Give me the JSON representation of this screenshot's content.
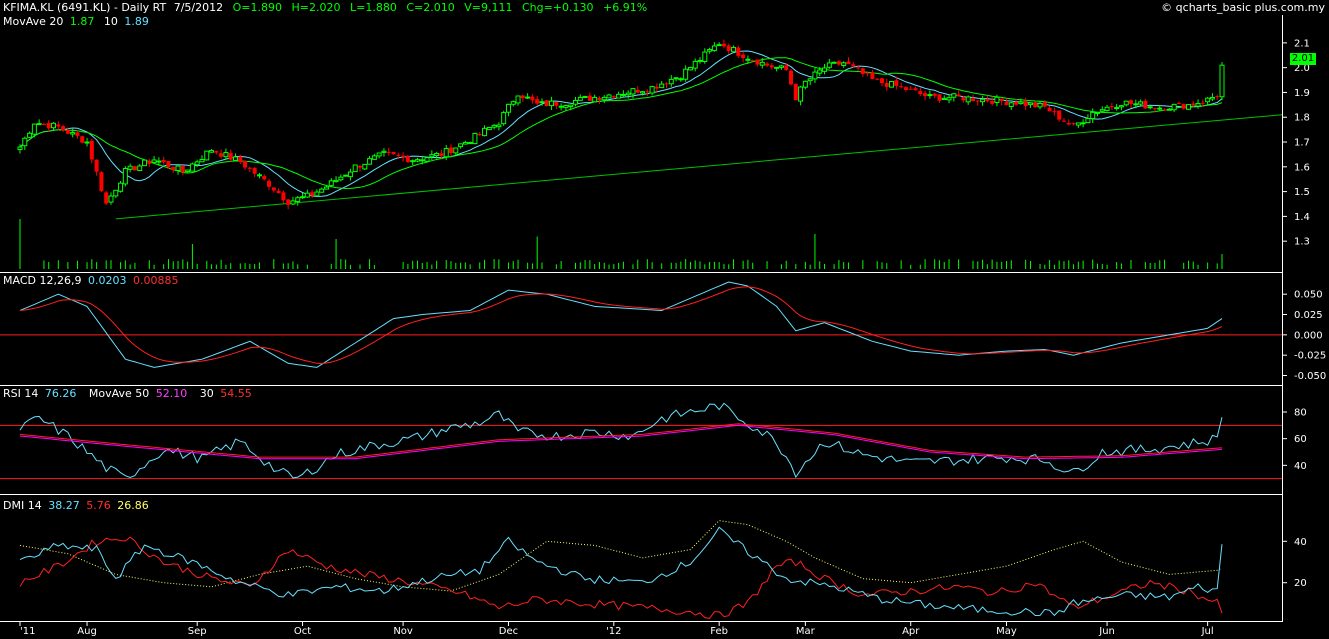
{
  "header": {
    "symbol": "KFIMA.KL (6491.KL) - Daily RT",
    "date": "7/5/2012",
    "open": "O=1.890",
    "high": "H=2.020",
    "low": "L=1.880",
    "close": "C=2.010",
    "volume": "V=9,111",
    "change": "Chg=+0.130",
    "change_pct": "+6.91%",
    "copyright": "© qcharts_basic plus.com.my",
    "last_price": "2.01"
  },
  "ma_legend": {
    "label": "MovAve 20",
    "v20": "1.87",
    "label10": "10",
    "v10": "1.89"
  },
  "macd_legend": {
    "label": "MACD 12,26,9",
    "macd": "0.0203",
    "signal": "0.00885"
  },
  "rsi_legend": {
    "label": "RSI 14",
    "rsi": "76.26",
    "ma_label": "MovAve 50",
    "ma": "52.10",
    "lvl_label": "30",
    "lvl": "54.55"
  },
  "dmi_legend": {
    "label": "DMI 14",
    "pdi": "38.27",
    "mdi": "5.76",
    "adx": "26.86"
  },
  "colors": {
    "up": "#00ff00",
    "down": "#ff0000",
    "cyan": "#66e0ff",
    "red": "#ff2020",
    "magenta": "#ff00ff",
    "yellow": "#ffff66",
    "trend": "#00c000"
  },
  "chart_data": {
    "type": "candlestick",
    "x_labels": [
      "'11",
      "Aug",
      "Sep",
      "Oct",
      "Nov",
      "Dec",
      "'12",
      "Feb",
      "Mar",
      "Apr",
      "May",
      "Jun",
      "Jul"
    ],
    "x_label_index": [
      0,
      14,
      37,
      59,
      80,
      102,
      124,
      146,
      164,
      186,
      206,
      227,
      248
    ],
    "price_axis": {
      "ticks": [
        "2.1",
        "2.0",
        "1.9",
        "1.8",
        "1.7",
        "1.6",
        "1.5",
        "1.4",
        "1.3"
      ],
      "range": [
        1.22,
        2.16
      ]
    },
    "price_keypoints": [
      [
        0,
        1.68
      ],
      [
        3,
        1.78
      ],
      [
        8,
        1.76
      ],
      [
        14,
        1.7
      ],
      [
        18,
        1.45
      ],
      [
        22,
        1.58
      ],
      [
        28,
        1.63
      ],
      [
        34,
        1.58
      ],
      [
        40,
        1.67
      ],
      [
        46,
        1.62
      ],
      [
        52,
        1.53
      ],
      [
        56,
        1.46
      ],
      [
        60,
        1.48
      ],
      [
        64,
        1.52
      ],
      [
        70,
        1.6
      ],
      [
        76,
        1.65
      ],
      [
        82,
        1.63
      ],
      [
        88,
        1.65
      ],
      [
        95,
        1.72
      ],
      [
        100,
        1.78
      ],
      [
        104,
        1.9
      ],
      [
        108,
        1.85
      ],
      [
        114,
        1.86
      ],
      [
        120,
        1.88
      ],
      [
        126,
        1.9
      ],
      [
        132,
        1.92
      ],
      [
        138,
        1.97
      ],
      [
        143,
        2.05
      ],
      [
        146,
        2.1
      ],
      [
        150,
        2.06
      ],
      [
        156,
        2.01
      ],
      [
        160,
        1.99
      ],
      [
        162,
        1.88
      ],
      [
        164,
        1.94
      ],
      [
        168,
        2.0
      ],
      [
        172,
        2.02
      ],
      [
        178,
        1.95
      ],
      [
        184,
        1.92
      ],
      [
        190,
        1.88
      ],
      [
        196,
        1.88
      ],
      [
        202,
        1.87
      ],
      [
        208,
        1.86
      ],
      [
        214,
        1.84
      ],
      [
        220,
        1.76
      ],
      [
        224,
        1.82
      ],
      [
        230,
        1.86
      ],
      [
        238,
        1.84
      ],
      [
        244,
        1.85
      ],
      [
        248,
        1.87
      ],
      [
        250,
        1.89
      ],
      [
        251,
        2.01
      ]
    ],
    "trendline": {
      "from": [
        20,
        1.39
      ],
      "to": [
        268,
        1.81
      ]
    },
    "macd_axis": {
      "ticks": [
        "0.050",
        "0.025",
        "0.000",
        "-0.025",
        "-0.050"
      ],
      "range": [
        -0.058,
        0.065
      ]
    },
    "macd_keypoints": [
      [
        0,
        0.03
      ],
      [
        8,
        0.05
      ],
      [
        14,
        0.035
      ],
      [
        22,
        -0.03
      ],
      [
        28,
        -0.04
      ],
      [
        38,
        -0.03
      ],
      [
        48,
        -0.008
      ],
      [
        56,
        -0.035
      ],
      [
        62,
        -0.04
      ],
      [
        70,
        -0.01
      ],
      [
        78,
        0.02
      ],
      [
        84,
        0.025
      ],
      [
        94,
        0.03
      ],
      [
        102,
        0.055
      ],
      [
        110,
        0.05
      ],
      [
        120,
        0.035
      ],
      [
        134,
        0.03
      ],
      [
        142,
        0.05
      ],
      [
        148,
        0.065
      ],
      [
        152,
        0.06
      ],
      [
        158,
        0.035
      ],
      [
        162,
        0.005
      ],
      [
        168,
        0.015
      ],
      [
        178,
        -0.008
      ],
      [
        186,
        -0.02
      ],
      [
        196,
        -0.025
      ],
      [
        206,
        -0.02
      ],
      [
        214,
        -0.018
      ],
      [
        220,
        -0.025
      ],
      [
        230,
        -0.01
      ],
      [
        240,
        0.0
      ],
      [
        248,
        0.008
      ],
      [
        251,
        0.02
      ]
    ],
    "rsi_axis": {
      "ticks": [
        "80",
        "60",
        "40"
      ],
      "range": [
        20,
        92
      ],
      "levels": [
        70,
        30
      ]
    },
    "rsi_keypoints": [
      [
        0,
        68
      ],
      [
        4,
        75
      ],
      [
        10,
        62
      ],
      [
        18,
        38
      ],
      [
        22,
        30
      ],
      [
        30,
        52
      ],
      [
        38,
        45
      ],
      [
        46,
        58
      ],
      [
        54,
        35
      ],
      [
        58,
        30
      ],
      [
        66,
        48
      ],
      [
        74,
        55
      ],
      [
        82,
        60
      ],
      [
        90,
        68
      ],
      [
        96,
        72
      ],
      [
        100,
        78
      ],
      [
        104,
        65
      ],
      [
        112,
        62
      ],
      [
        120,
        65
      ],
      [
        128,
        62
      ],
      [
        134,
        75
      ],
      [
        140,
        80
      ],
      [
        146,
        85
      ],
      [
        152,
        72
      ],
      [
        158,
        58
      ],
      [
        162,
        35
      ],
      [
        168,
        58
      ],
      [
        176,
        48
      ],
      [
        186,
        42
      ],
      [
        196,
        44
      ],
      [
        206,
        46
      ],
      [
        214,
        44
      ],
      [
        220,
        34
      ],
      [
        226,
        50
      ],
      [
        236,
        52
      ],
      [
        244,
        56
      ],
      [
        250,
        60
      ],
      [
        251,
        76
      ]
    ],
    "rsi_ma_keypoints": [
      [
        0,
        62
      ],
      [
        20,
        55
      ],
      [
        50,
        45
      ],
      [
        70,
        45
      ],
      [
        100,
        58
      ],
      [
        130,
        62
      ],
      [
        150,
        70
      ],
      [
        170,
        63
      ],
      [
        190,
        50
      ],
      [
        210,
        45
      ],
      [
        230,
        46
      ],
      [
        251,
        52
      ]
    ],
    "dmi_axis": {
      "ticks": [
        "40",
        "20"
      ],
      "range": [
        2,
        58
      ]
    },
    "pdi_keypoints": [
      [
        0,
        30
      ],
      [
        8,
        38
      ],
      [
        16,
        36
      ],
      [
        20,
        22
      ],
      [
        26,
        38
      ],
      [
        36,
        30
      ],
      [
        46,
        20
      ],
      [
        56,
        14
      ],
      [
        66,
        18
      ],
      [
        76,
        16
      ],
      [
        86,
        22
      ],
      [
        96,
        26
      ],
      [
        102,
        40
      ],
      [
        108,
        30
      ],
      [
        118,
        22
      ],
      [
        130,
        20
      ],
      [
        140,
        30
      ],
      [
        146,
        45
      ],
      [
        152,
        35
      ],
      [
        160,
        22
      ],
      [
        170,
        18
      ],
      [
        180,
        12
      ],
      [
        190,
        9
      ],
      [
        200,
        7
      ],
      [
        210,
        6
      ],
      [
        216,
        5
      ],
      [
        220,
        10
      ],
      [
        230,
        14
      ],
      [
        240,
        13
      ],
      [
        246,
        18
      ],
      [
        250,
        16
      ],
      [
        251,
        38
      ]
    ],
    "mdi_keypoints": [
      [
        0,
        20
      ],
      [
        8,
        28
      ],
      [
        16,
        40
      ],
      [
        22,
        42
      ],
      [
        30,
        30
      ],
      [
        40,
        22
      ],
      [
        48,
        18
      ],
      [
        56,
        36
      ],
      [
        64,
        28
      ],
      [
        72,
        24
      ],
      [
        82,
        20
      ],
      [
        92,
        15
      ],
      [
        100,
        8
      ],
      [
        108,
        12
      ],
      [
        118,
        10
      ],
      [
        130,
        8
      ],
      [
        140,
        6
      ],
      [
        146,
        4
      ],
      [
        152,
        10
      ],
      [
        158,
        28
      ],
      [
        162,
        30
      ],
      [
        168,
        22
      ],
      [
        176,
        14
      ],
      [
        186,
        16
      ],
      [
        196,
        18
      ],
      [
        204,
        15
      ],
      [
        212,
        20
      ],
      [
        220,
        8
      ],
      [
        228,
        14
      ],
      [
        236,
        20
      ],
      [
        244,
        16
      ],
      [
        250,
        10
      ],
      [
        251,
        6
      ]
    ],
    "adx_keypoints": [
      [
        0,
        38
      ],
      [
        10,
        34
      ],
      [
        20,
        24
      ],
      [
        30,
        20
      ],
      [
        40,
        18
      ],
      [
        50,
        24
      ],
      [
        60,
        28
      ],
      [
        70,
        22
      ],
      [
        80,
        18
      ],
      [
        90,
        16
      ],
      [
        100,
        24
      ],
      [
        110,
        40
      ],
      [
        120,
        38
      ],
      [
        130,
        32
      ],
      [
        140,
        36
      ],
      [
        146,
        50
      ],
      [
        152,
        48
      ],
      [
        160,
        40
      ],
      [
        166,
        32
      ],
      [
        176,
        22
      ],
      [
        186,
        20
      ],
      [
        196,
        24
      ],
      [
        206,
        28
      ],
      [
        216,
        36
      ],
      [
        222,
        40
      ],
      [
        230,
        30
      ],
      [
        240,
        24
      ],
      [
        250,
        26
      ],
      [
        251,
        27
      ]
    ],
    "volume_spikes": [
      [
        0,
        1.0
      ],
      [
        20,
        0.55
      ],
      [
        36,
        0.5
      ],
      [
        66,
        0.6
      ],
      [
        88,
        0.5
      ],
      [
        108,
        0.65
      ],
      [
        114,
        0.55
      ],
      [
        150,
        0.5
      ],
      [
        166,
        0.7
      ],
      [
        182,
        0.45
      ],
      [
        251,
        0.3
      ]
    ]
  }
}
